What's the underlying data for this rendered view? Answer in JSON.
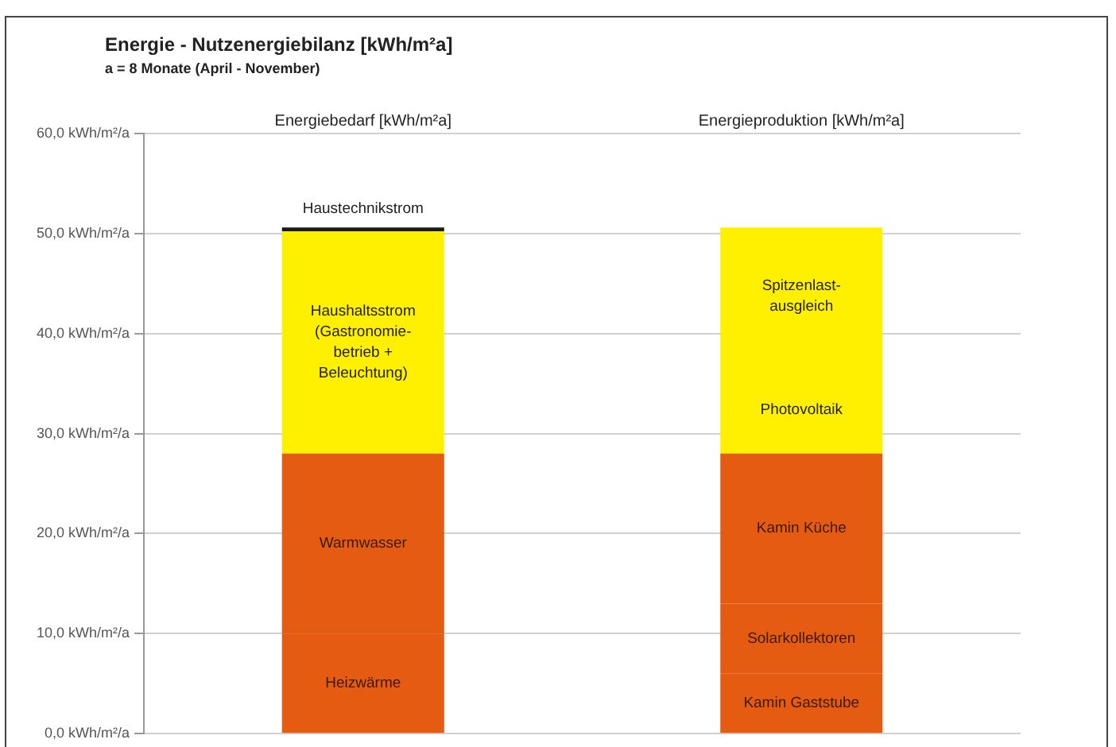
{
  "chart_data": {
    "type": "bar",
    "title": "Energie - Nutzenergiebilanz [kWh/m²a]",
    "subtitle": "a = 8 Monate (April - November)",
    "categories": [
      "Energiebedarf [kWh/m²a]",
      "Energieproduktion [kWh/m²a]"
    ],
    "stacked": true,
    "legend": false,
    "grid": "y",
    "ylim": [
      0,
      60
    ],
    "yticks": [
      {
        "value": 0,
        "label": "0,0 kWh/m²/a"
      },
      {
        "value": 10,
        "label": "10,0 kWh/m²/a"
      },
      {
        "value": 20,
        "label": "20,0 kWh/m²/a"
      },
      {
        "value": 30,
        "label": "30,0 kWh/m²/a"
      },
      {
        "value": 40,
        "label": "40,0 kWh/m²/a"
      },
      {
        "value": 50,
        "label": "50,0 kWh/m²/a"
      },
      {
        "value": 60,
        "label": "60,0 kWh/m²/a"
      }
    ],
    "series": [
      {
        "name": "Heizwärme",
        "color": "#e55b12",
        "values": [
          10,
          null
        ]
      },
      {
        "name": "Warmwasser",
        "color": "#e55b12",
        "values": [
          18,
          null
        ]
      },
      {
        "name": "Haushaltsstrom (Gastronomie-betrieb + Beleuchtung)",
        "color": "#fff000",
        "values": [
          22.2,
          null
        ]
      },
      {
        "name": "Haustechnikstrom",
        "color": "#1a1a1a",
        "values": [
          0.4,
          null
        ]
      },
      {
        "name": "Kamin Gaststube",
        "color": "#e55b12",
        "values": [
          null,
          6
        ]
      },
      {
        "name": "Solarkollektoren",
        "color": "#e55b12",
        "values": [
          null,
          7
        ]
      },
      {
        "name": "Kamin Küche",
        "color": "#e55b12",
        "values": [
          null,
          15
        ]
      },
      {
        "name": "Photovoltaik",
        "color": "#fff000",
        "values": [
          null,
          8.8
        ]
      },
      {
        "name": "Spitzenlast-ausgleich",
        "color": "#fff000",
        "values": [
          null,
          13.8
        ]
      }
    ]
  }
}
